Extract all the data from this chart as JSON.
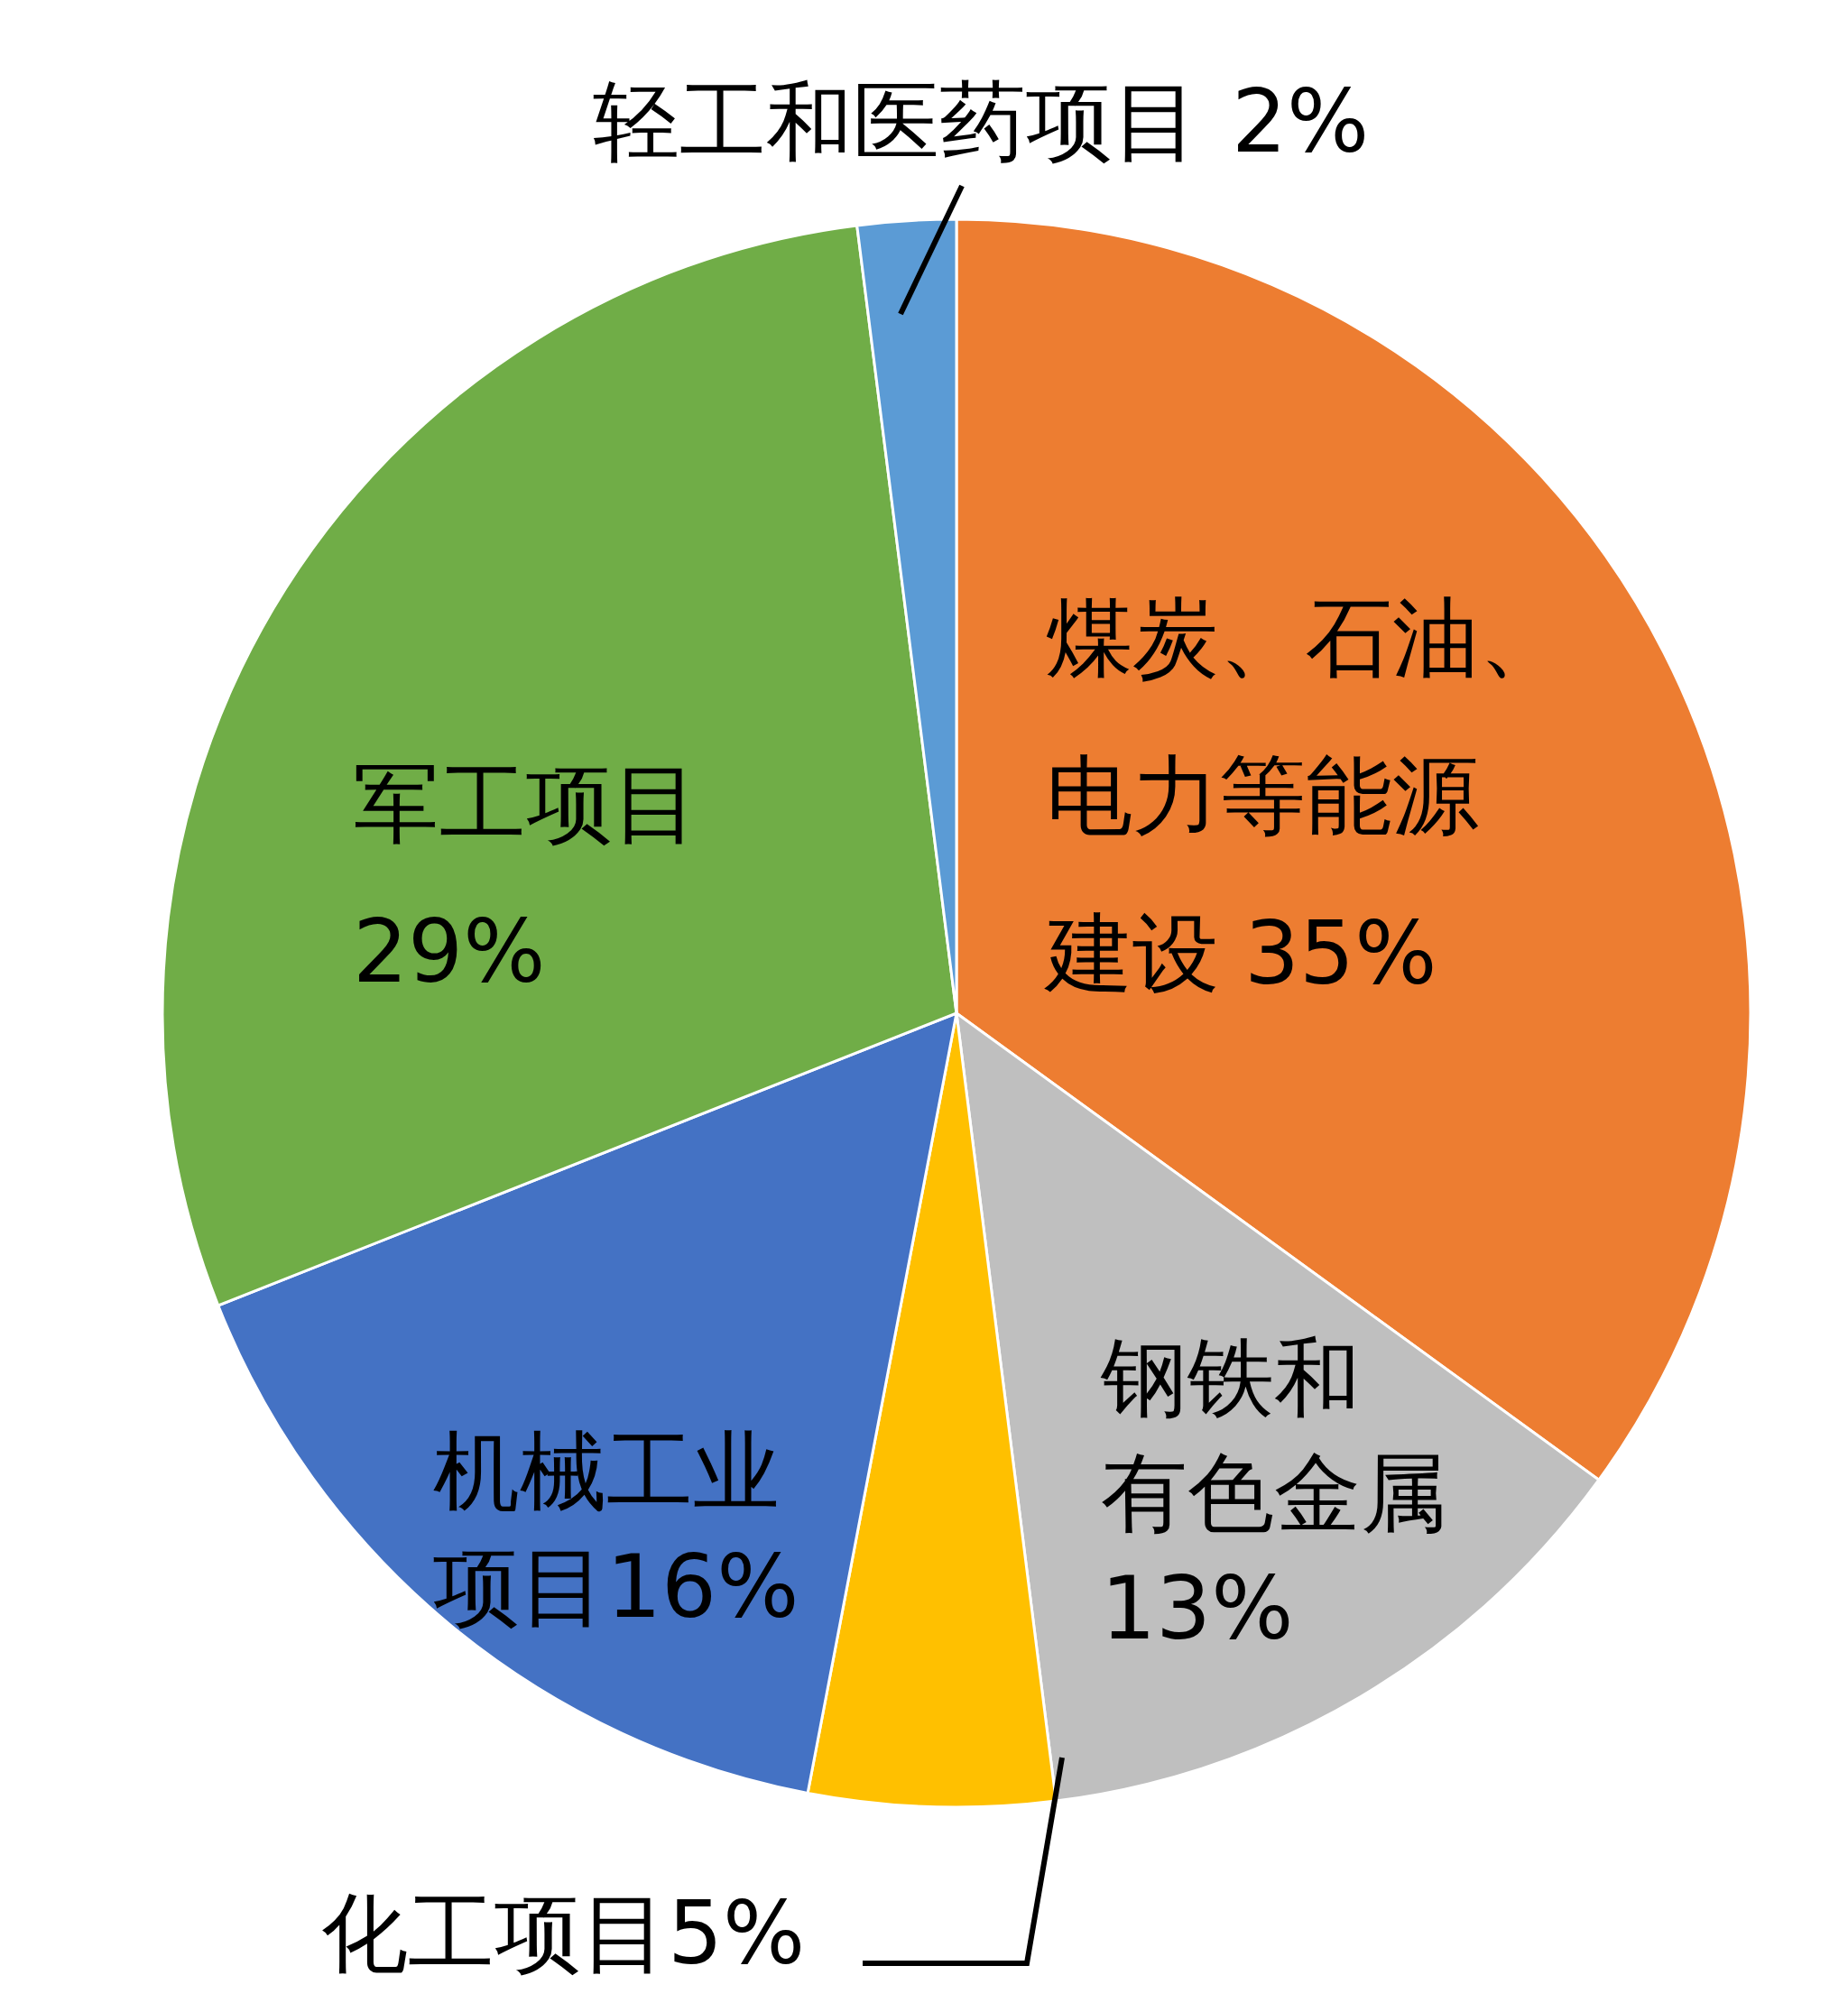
{
  "chart_data": {
    "type": "pie",
    "categories": [
      "煤炭、石油、电力等能源建设",
      "钢铁和有色金属",
      "化工项目",
      "机械工业项目",
      "军工项目",
      "轻工和医药项目"
    ],
    "values": [
      35,
      13,
      5,
      16,
      29,
      2
    ],
    "value_labels": [
      "35%",
      "13%",
      "5%",
      "16%",
      "29%",
      "2%"
    ],
    "colors": [
      "#ed7d31",
      "#bfbfbf",
      "#ffc000",
      "#4472c4",
      "#70ad47",
      "#5b9bd5"
    ]
  }
}
